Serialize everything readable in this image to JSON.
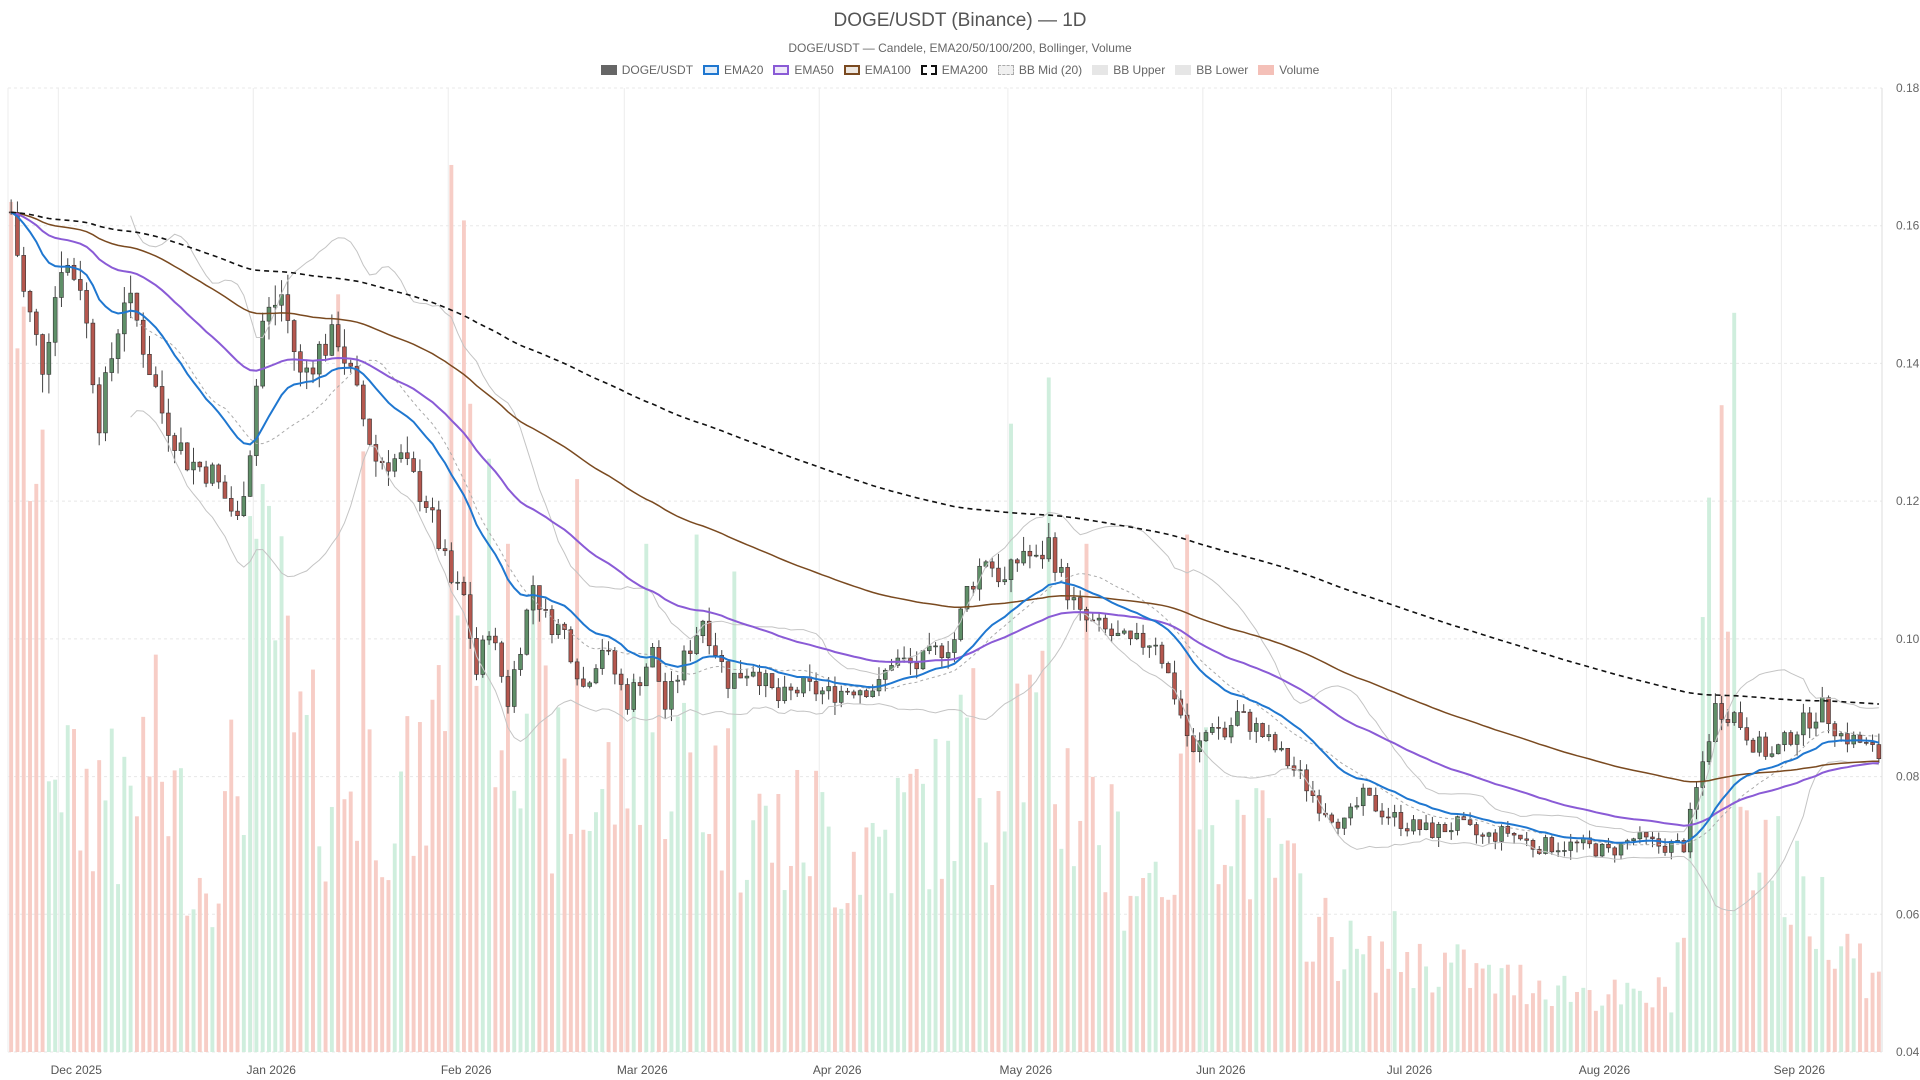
{
  "chart_data": {
    "type": "candlestick",
    "title": "DOGE/USDT (Binance) — 1D",
    "subtitle": "DOGE/USDT — Candele, EMA20/50/100/200, Bollinger, Volume",
    "legend": [
      {
        "name": "DOGE/USDT",
        "color": "#666666",
        "style": "fill"
      },
      {
        "name": "EMA20",
        "color": "#1f77d0",
        "style": "box"
      },
      {
        "name": "EMA50",
        "color": "#8a5bd6",
        "style": "box"
      },
      {
        "name": "EMA100",
        "color": "#7a4a20",
        "style": "box"
      },
      {
        "name": "EMA200",
        "color": "#111111",
        "style": "dashed"
      },
      {
        "name": "BB Mid (20)",
        "color": "#bbbbbb",
        "style": "dotted"
      },
      {
        "name": "BB Upper",
        "color": "#c8c8c8",
        "style": "light"
      },
      {
        "name": "BB Lower",
        "color": "#c8c8c8",
        "style": "light"
      },
      {
        "name": "Volume",
        "color": "#f4c0b8",
        "style": "light"
      }
    ],
    "x_axis": {
      "start_date": "2025-11-23",
      "end_date": "2026-09-20",
      "ticks": [
        {
          "label": "Dec 2025",
          "day": 8
        },
        {
          "label": "Jan 2026",
          "day": 39
        },
        {
          "label": "Feb 2026",
          "day": 70
        },
        {
          "label": "Mar 2026",
          "day": 98
        },
        {
          "label": "Apr 2026",
          "day": 129
        },
        {
          "label": "May 2026",
          "day": 159
        },
        {
          "label": "Jun 2026",
          "day": 190
        },
        {
          "label": "Jul 2026",
          "day": 220
        },
        {
          "label": "Aug 2026",
          "day": 251
        },
        {
          "label": "Sep 2026",
          "day": 282
        }
      ]
    },
    "y_axis": {
      "min": 0.04,
      "max": 0.18,
      "ticks": [
        0.04,
        0.06,
        0.08,
        0.1,
        0.12,
        0.14,
        0.16,
        0.18
      ],
      "position": "right"
    },
    "colors": {
      "up": "#5f8f68",
      "down": "#b5574e",
      "vol_up": "#cfeedd",
      "vol_down": "#f7cdc6",
      "grid": "#eeeeee"
    },
    "price_anchors": [
      [
        0,
        0.162
      ],
      [
        2,
        0.15
      ],
      [
        5,
        0.14
      ],
      [
        8,
        0.155
      ],
      [
        11,
        0.152
      ],
      [
        14,
        0.132
      ],
      [
        18,
        0.15
      ],
      [
        20,
        0.146
      ],
      [
        24,
        0.133
      ],
      [
        28,
        0.126
      ],
      [
        32,
        0.124
      ],
      [
        36,
        0.117
      ],
      [
        38,
        0.128
      ],
      [
        40,
        0.146
      ],
      [
        43,
        0.15
      ],
      [
        46,
        0.138
      ],
      [
        49,
        0.142
      ],
      [
        52,
        0.144
      ],
      [
        55,
        0.135
      ],
      [
        58,
        0.126
      ],
      [
        62,
        0.126
      ],
      [
        66,
        0.12
      ],
      [
        70,
        0.108
      ],
      [
        72,
        0.106
      ],
      [
        74,
        0.095
      ],
      [
        76,
        0.102
      ],
      [
        79,
        0.091
      ],
      [
        83,
        0.108
      ],
      [
        85,
        0.103
      ],
      [
        88,
        0.101
      ],
      [
        91,
        0.093
      ],
      [
        94,
        0.099
      ],
      [
        98,
        0.091
      ],
      [
        102,
        0.098
      ],
      [
        104,
        0.09
      ],
      [
        107,
        0.097
      ],
      [
        110,
        0.103
      ],
      [
        114,
        0.094
      ],
      [
        118,
        0.096
      ],
      [
        122,
        0.091
      ],
      [
        126,
        0.093
      ],
      [
        130,
        0.092
      ],
      [
        134,
        0.093
      ],
      [
        138,
        0.093
      ],
      [
        140,
        0.097
      ],
      [
        144,
        0.096
      ],
      [
        147,
        0.098
      ],
      [
        150,
        0.1
      ],
      [
        152,
        0.107
      ],
      [
        155,
        0.112
      ],
      [
        158,
        0.108
      ],
      [
        161,
        0.113
      ],
      [
        163,
        0.111
      ],
      [
        165,
        0.114
      ],
      [
        167,
        0.109
      ],
      [
        170,
        0.103
      ],
      [
        174,
        0.101
      ],
      [
        178,
        0.099
      ],
      [
        182,
        0.1
      ],
      [
        185,
        0.092
      ],
      [
        188,
        0.083
      ],
      [
        191,
        0.088
      ],
      [
        193,
        0.086
      ],
      [
        195,
        0.089
      ],
      [
        198,
        0.087
      ],
      [
        201,
        0.084
      ],
      [
        205,
        0.08
      ],
      [
        208,
        0.076
      ],
      [
        212,
        0.073
      ],
      [
        215,
        0.077
      ],
      [
        218,
        0.075
      ],
      [
        222,
        0.073
      ],
      [
        226,
        0.072
      ],
      [
        230,
        0.073
      ],
      [
        234,
        0.071
      ],
      [
        238,
        0.072
      ],
      [
        242,
        0.07
      ],
      [
        246,
        0.07
      ],
      [
        250,
        0.07
      ],
      [
        254,
        0.069
      ],
      [
        258,
        0.071
      ],
      [
        262,
        0.07
      ],
      [
        266,
        0.07
      ],
      [
        268,
        0.078
      ],
      [
        271,
        0.09
      ],
      [
        274,
        0.089
      ],
      [
        277,
        0.085
      ],
      [
        280,
        0.083
      ],
      [
        284,
        0.087
      ],
      [
        288,
        0.09
      ],
      [
        291,
        0.086
      ],
      [
        294,
        0.085
      ],
      [
        297,
        0.083
      ]
    ],
    "volume_anchors": [
      [
        0,
        0.55
      ],
      [
        3,
        0.78
      ],
      [
        6,
        0.4
      ],
      [
        10,
        0.28
      ],
      [
        14,
        0.3
      ],
      [
        18,
        0.25
      ],
      [
        22,
        0.35
      ],
      [
        26,
        0.28
      ],
      [
        30,
        0.2
      ],
      [
        34,
        0.25
      ],
      [
        38,
        0.4
      ],
      [
        41,
        0.55
      ],
      [
        45,
        0.35
      ],
      [
        50,
        0.3
      ],
      [
        55,
        0.32
      ],
      [
        60,
        0.3
      ],
      [
        65,
        0.28
      ],
      [
        70,
        0.45
      ],
      [
        74,
        0.6
      ],
      [
        78,
        0.4
      ],
      [
        82,
        0.45
      ],
      [
        86,
        0.3
      ],
      [
        90,
        0.28
      ],
      [
        95,
        0.3
      ],
      [
        100,
        0.38
      ],
      [
        104,
        0.35
      ],
      [
        108,
        0.32
      ],
      [
        112,
        0.3
      ],
      [
        116,
        0.28
      ],
      [
        120,
        0.25
      ],
      [
        124,
        0.24
      ],
      [
        128,
        0.26
      ],
      [
        132,
        0.22
      ],
      [
        136,
        0.24
      ],
      [
        140,
        0.25
      ],
      [
        144,
        0.28
      ],
      [
        148,
        0.27
      ],
      [
        152,
        0.35
      ],
      [
        156,
        0.3
      ],
      [
        160,
        0.38
      ],
      [
        164,
        0.34
      ],
      [
        168,
        0.3
      ],
      [
        172,
        0.26
      ],
      [
        176,
        0.22
      ],
      [
        180,
        0.2
      ],
      [
        184,
        0.22
      ],
      [
        188,
        0.28
      ],
      [
        192,
        0.3
      ],
      [
        196,
        0.25
      ],
      [
        200,
        0.22
      ],
      [
        204,
        0.18
      ],
      [
        208,
        0.14
      ],
      [
        212,
        0.12
      ],
      [
        216,
        0.1
      ],
      [
        220,
        0.12
      ],
      [
        224,
        0.1
      ],
      [
        228,
        0.1
      ],
      [
        232,
        0.09
      ],
      [
        236,
        0.08
      ],
      [
        240,
        0.08
      ],
      [
        244,
        0.08
      ],
      [
        248,
        0.07
      ],
      [
        252,
        0.07
      ],
      [
        256,
        0.06
      ],
      [
        260,
        0.06
      ],
      [
        264,
        0.07
      ],
      [
        267,
        0.2
      ],
      [
        270,
        0.45
      ],
      [
        273,
        0.4
      ],
      [
        276,
        0.3
      ],
      [
        280,
        0.22
      ],
      [
        284,
        0.18
      ],
      [
        288,
        0.16
      ],
      [
        292,
        0.14
      ],
      [
        296,
        0.08
      ]
    ],
    "volume_spikes": [
      [
        0,
        0.92
      ],
      [
        16,
        0.35
      ],
      [
        38,
        0.58
      ],
      [
        52,
        0.82
      ],
      [
        56,
        0.65
      ],
      [
        70,
        0.96
      ],
      [
        72,
        0.9
      ],
      [
        79,
        0.55
      ],
      [
        90,
        0.62
      ],
      [
        101,
        0.55
      ],
      [
        109,
        0.56
      ],
      [
        115,
        0.52
      ],
      [
        159,
        0.68
      ],
      [
        165,
        0.73
      ],
      [
        171,
        0.55
      ],
      [
        187,
        0.56
      ],
      [
        270,
        0.6
      ],
      [
        272,
        0.7
      ],
      [
        274,
        0.8
      ]
    ],
    "volume_scale_max": 1.0,
    "grid": true,
    "legend_position": "top-center"
  }
}
